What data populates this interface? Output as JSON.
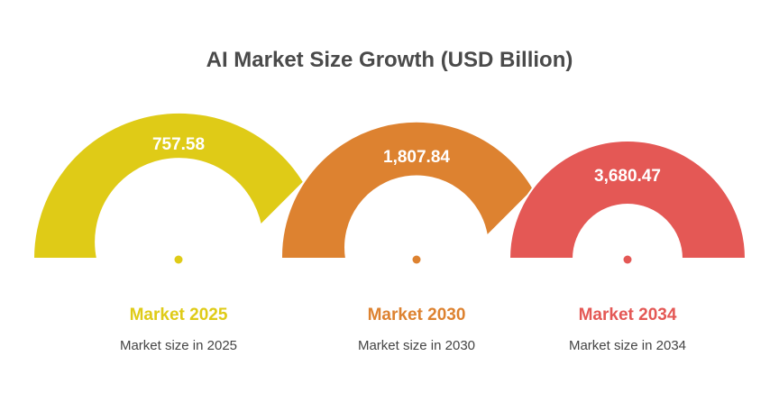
{
  "title": "AI Market Size Growth (USD Billion)",
  "gauges": [
    {
      "value": "757.58",
      "label": "Market 2025",
      "description": "Market size in 2025",
      "color": "#dfcb17"
    },
    {
      "value": "1,807.84",
      "label": "Market 2030",
      "description": "Market size in 2030",
      "color": "#dd8230"
    },
    {
      "value": "3,680.47",
      "label": "Market 2034",
      "description": "Market size in 2034",
      "color": "#e45855"
    }
  ]
}
